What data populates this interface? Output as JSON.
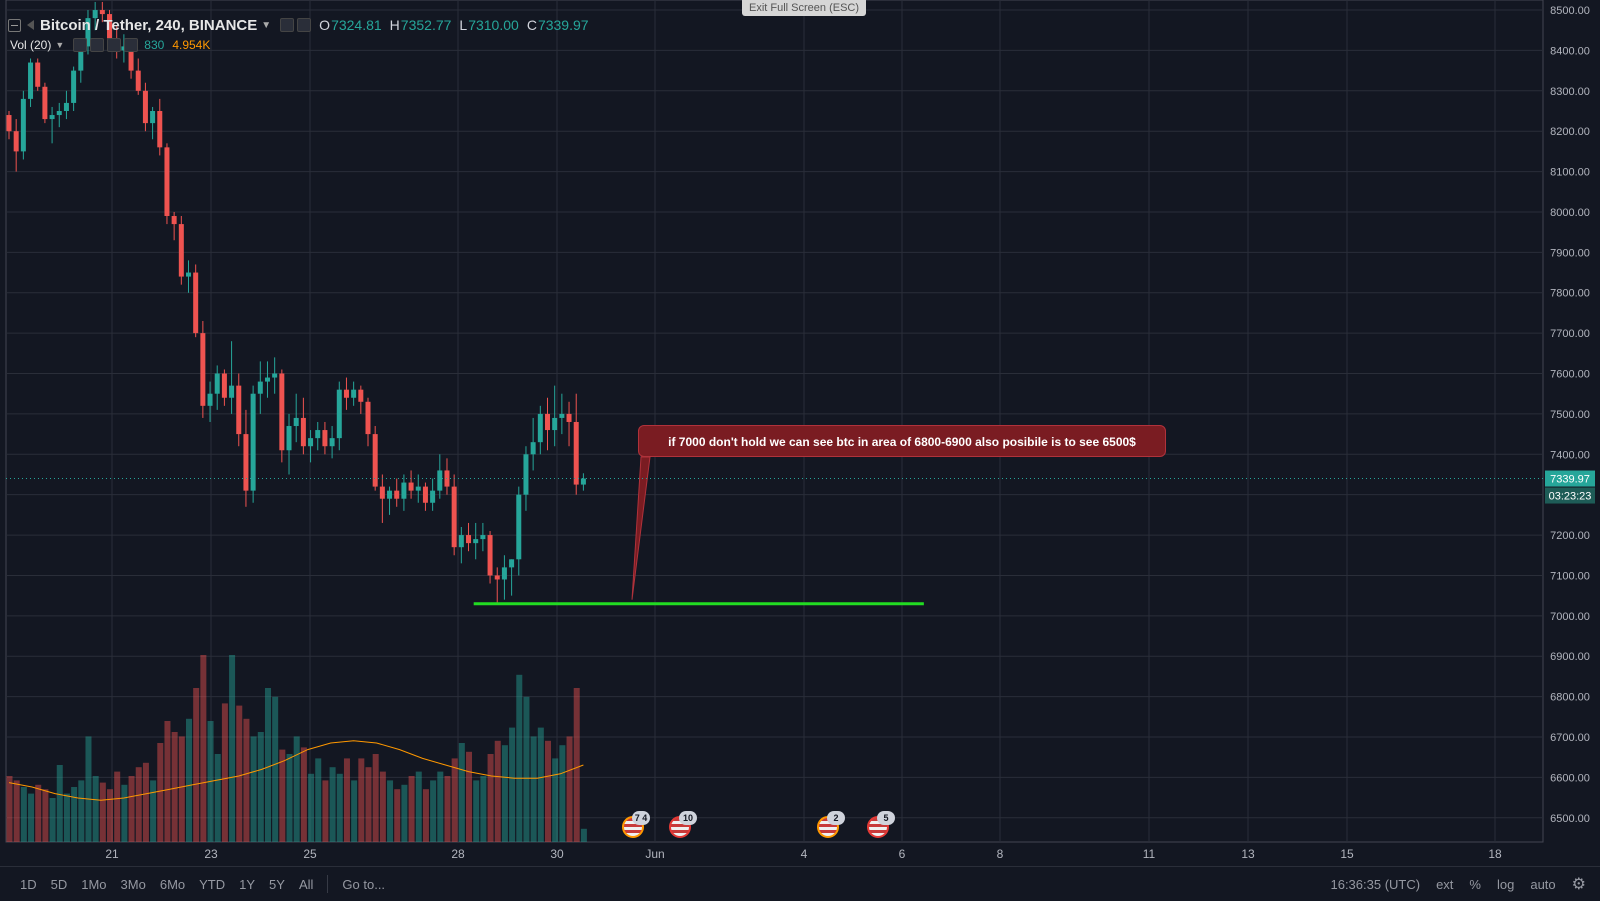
{
  "header": {
    "symbol": "Bitcoin / Tether, 240, BINANCE",
    "open_label": "O",
    "open": "7324.81",
    "high_label": "H",
    "high": "7352.77",
    "low_label": "L",
    "low": "7310.00",
    "close_label": "C",
    "close": "7339.97",
    "exit_fullscreen": "Exit Full Screen (ESC)"
  },
  "volume_legend": {
    "label": "Vol (20)",
    "value1": "830",
    "value2": "4.954K"
  },
  "annotation": {
    "text": "if 7000 don't hold we can see btc in area of 6800-6900 also posibile is to see 6500$"
  },
  "events": [
    {
      "icon": "us-flag-icon",
      "count": "7 4"
    },
    {
      "icon": "us-flag-icon",
      "count": "10"
    },
    {
      "icon": "us-flag-icon",
      "count": "2"
    },
    {
      "icon": "us-flag-icon",
      "count": "5"
    }
  ],
  "bottombar": {
    "ranges": [
      "1D",
      "5D",
      "1Mo",
      "3Mo",
      "6Mo",
      "YTD",
      "1Y",
      "5Y",
      "All"
    ],
    "goto": "Go to...",
    "clock": "16:36:35 (UTC)",
    "ext": "ext",
    "percent": "%",
    "log": "log",
    "auto": "auto"
  },
  "colors": {
    "up": "#26a69a",
    "down": "#ef5350",
    "background": "#131722",
    "support_line": "#22dd22",
    "ma": "#ff9800"
  },
  "chart_data": {
    "type": "candlestick",
    "y_axis": {
      "ticks": [
        8500,
        8400,
        8300,
        8200,
        8100,
        8000,
        7900,
        7800,
        7700,
        7600,
        7500,
        7400,
        7300,
        7200,
        7100,
        7000,
        6900,
        6800,
        6700,
        6600,
        6500
      ],
      "labels": [
        "8500.00",
        "8400.00",
        "8300.00",
        "8200.00",
        "8100.00",
        "8000.00",
        "7900.00",
        "7800.00",
        "7700.00",
        "7600.00",
        "7500.00",
        "7400.00",
        "7300.00",
        "7200.00",
        "7100.00",
        "7000.00",
        "6900.00",
        "6800.00",
        "6700.00",
        "6600.00",
        "6500.00"
      ],
      "range": [
        6440,
        8510
      ]
    },
    "x_axis": {
      "labels": [
        "21",
        "23",
        "25",
        "28",
        "30",
        "Jun",
        "4",
        "6",
        "8",
        "11",
        "13",
        "15",
        "18"
      ]
    },
    "last_price": {
      "value": 7339.97,
      "label": "7339.97",
      "countdown": "03:23:23"
    },
    "support_line": {
      "price": 7030,
      "from_bar": 65,
      "to_bar": 127
    },
    "candles": [
      [
        8240,
        8250,
        8180,
        8200
      ],
      [
        8200,
        8230,
        8100,
        8150
      ],
      [
        8150,
        8300,
        8130,
        8280
      ],
      [
        8280,
        8380,
        8260,
        8370
      ],
      [
        8370,
        8380,
        8300,
        8310
      ],
      [
        8310,
        8320,
        8220,
        8230
      ],
      [
        8230,
        8260,
        8170,
        8240
      ],
      [
        8240,
        8270,
        8210,
        8250
      ],
      [
        8250,
        8300,
        8230,
        8270
      ],
      [
        8270,
        8360,
        8250,
        8350
      ],
      [
        8350,
        8420,
        8320,
        8410
      ],
      [
        8410,
        8500,
        8390,
        8480
      ],
      [
        8480,
        8520,
        8450,
        8500
      ],
      [
        8500,
        8520,
        8470,
        8490
      ],
      [
        8490,
        8500,
        8420,
        8430
      ],
      [
        8430,
        8460,
        8380,
        8400
      ],
      [
        8400,
        8440,
        8370,
        8410
      ],
      [
        8410,
        8420,
        8330,
        8350
      ],
      [
        8350,
        8380,
        8290,
        8300
      ],
      [
        8300,
        8320,
        8200,
        8220
      ],
      [
        8220,
        8260,
        8180,
        8250
      ],
      [
        8250,
        8280,
        8140,
        8160
      ],
      [
        8160,
        8170,
        7970,
        7990
      ],
      [
        7990,
        8000,
        7930,
        7970
      ],
      [
        7970,
        7990,
        7820,
        7840
      ],
      [
        7840,
        7880,
        7800,
        7850
      ],
      [
        7850,
        7870,
        7690,
        7700
      ],
      [
        7700,
        7730,
        7490,
        7520
      ],
      [
        7520,
        7580,
        7480,
        7550
      ],
      [
        7550,
        7620,
        7510,
        7600
      ],
      [
        7600,
        7610,
        7520,
        7540
      ],
      [
        7540,
        7680,
        7500,
        7570
      ],
      [
        7570,
        7600,
        7420,
        7450
      ],
      [
        7450,
        7510,
        7270,
        7310
      ],
      [
        7310,
        7570,
        7280,
        7550
      ],
      [
        7550,
        7630,
        7500,
        7580
      ],
      [
        7580,
        7630,
        7540,
        7590
      ],
      [
        7590,
        7640,
        7550,
        7600
      ],
      [
        7600,
        7610,
        7380,
        7410
      ],
      [
        7410,
        7500,
        7350,
        7470
      ],
      [
        7470,
        7550,
        7430,
        7490
      ],
      [
        7490,
        7540,
        7400,
        7420
      ],
      [
        7420,
        7460,
        7380,
        7440
      ],
      [
        7440,
        7480,
        7410,
        7460
      ],
      [
        7460,
        7480,
        7400,
        7420
      ],
      [
        7420,
        7470,
        7390,
        7440
      ],
      [
        7440,
        7580,
        7410,
        7560
      ],
      [
        7560,
        7590,
        7510,
        7540
      ],
      [
        7540,
        7580,
        7520,
        7560
      ],
      [
        7560,
        7570,
        7500,
        7530
      ],
      [
        7530,
        7540,
        7420,
        7450
      ],
      [
        7450,
        7470,
        7310,
        7320
      ],
      [
        7320,
        7350,
        7230,
        7290
      ],
      [
        7290,
        7320,
        7250,
        7310
      ],
      [
        7310,
        7340,
        7270,
        7290
      ],
      [
        7290,
        7350,
        7260,
        7330
      ],
      [
        7330,
        7360,
        7290,
        7310
      ],
      [
        7310,
        7350,
        7280,
        7320
      ],
      [
        7320,
        7330,
        7260,
        7280
      ],
      [
        7280,
        7340,
        7260,
        7310
      ],
      [
        7310,
        7400,
        7290,
        7360
      ],
      [
        7360,
        7390,
        7300,
        7320
      ],
      [
        7320,
        7350,
        7150,
        7170
      ],
      [
        7170,
        7220,
        7130,
        7200
      ],
      [
        7200,
        7230,
        7160,
        7180
      ],
      [
        7180,
        7230,
        7140,
        7190
      ],
      [
        7190,
        7230,
        7160,
        7200
      ],
      [
        7200,
        7210,
        7080,
        7100
      ],
      [
        7100,
        7120,
        7030,
        7090
      ],
      [
        7090,
        7150,
        7040,
        7120
      ],
      [
        7120,
        7140,
        7050,
        7140
      ],
      [
        7140,
        7320,
        7100,
        7300
      ],
      [
        7300,
        7420,
        7260,
        7400
      ],
      [
        7400,
        7490,
        7360,
        7430
      ],
      [
        7430,
        7520,
        7400,
        7500
      ],
      [
        7500,
        7540,
        7410,
        7460
      ],
      [
        7460,
        7570,
        7420,
        7490
      ],
      [
        7490,
        7550,
        7450,
        7500
      ],
      [
        7500,
        7530,
        7420,
        7480
      ],
      [
        7480,
        7550,
        7300,
        7325
      ],
      [
        7325,
        7353,
        7310,
        7340
      ]
    ],
    "volume_ma_20": [
      0.27,
      0.25,
      0.22,
      0.2,
      0.19,
      0.2,
      0.22,
      0.24,
      0.26,
      0.28,
      0.3,
      0.33,
      0.37,
      0.42,
      0.45,
      0.46,
      0.45,
      0.42,
      0.38,
      0.35,
      0.32,
      0.3,
      0.29,
      0.29,
      0.31,
      0.35
    ],
    "volume": [
      0.3,
      0.28,
      0.25,
      0.22,
      0.26,
      0.24,
      0.2,
      0.35,
      0.22,
      0.25,
      0.28,
      0.48,
      0.3,
      0.27,
      0.24,
      0.32,
      0.26,
      0.3,
      0.34,
      0.36,
      0.28,
      0.45,
      0.55,
      0.5,
      0.48,
      0.56,
      0.7,
      0.85,
      0.55,
      0.4,
      0.63,
      0.85,
      0.62,
      0.56,
      0.48,
      0.5,
      0.7,
      0.66,
      0.42,
      0.4,
      0.48,
      0.43,
      0.31,
      0.38,
      0.28,
      0.34,
      0.31,
      0.38,
      0.28,
      0.38,
      0.34,
      0.4,
      0.32,
      0.28,
      0.24,
      0.26,
      0.3,
      0.32,
      0.24,
      0.28,
      0.32,
      0.3,
      0.38,
      0.45,
      0.41,
      0.28,
      0.3,
      0.4,
      0.46,
      0.44,
      0.52,
      0.76,
      0.66,
      0.48,
      0.52,
      0.46,
      0.38,
      0.44,
      0.48,
      0.7,
      0.06
    ]
  }
}
